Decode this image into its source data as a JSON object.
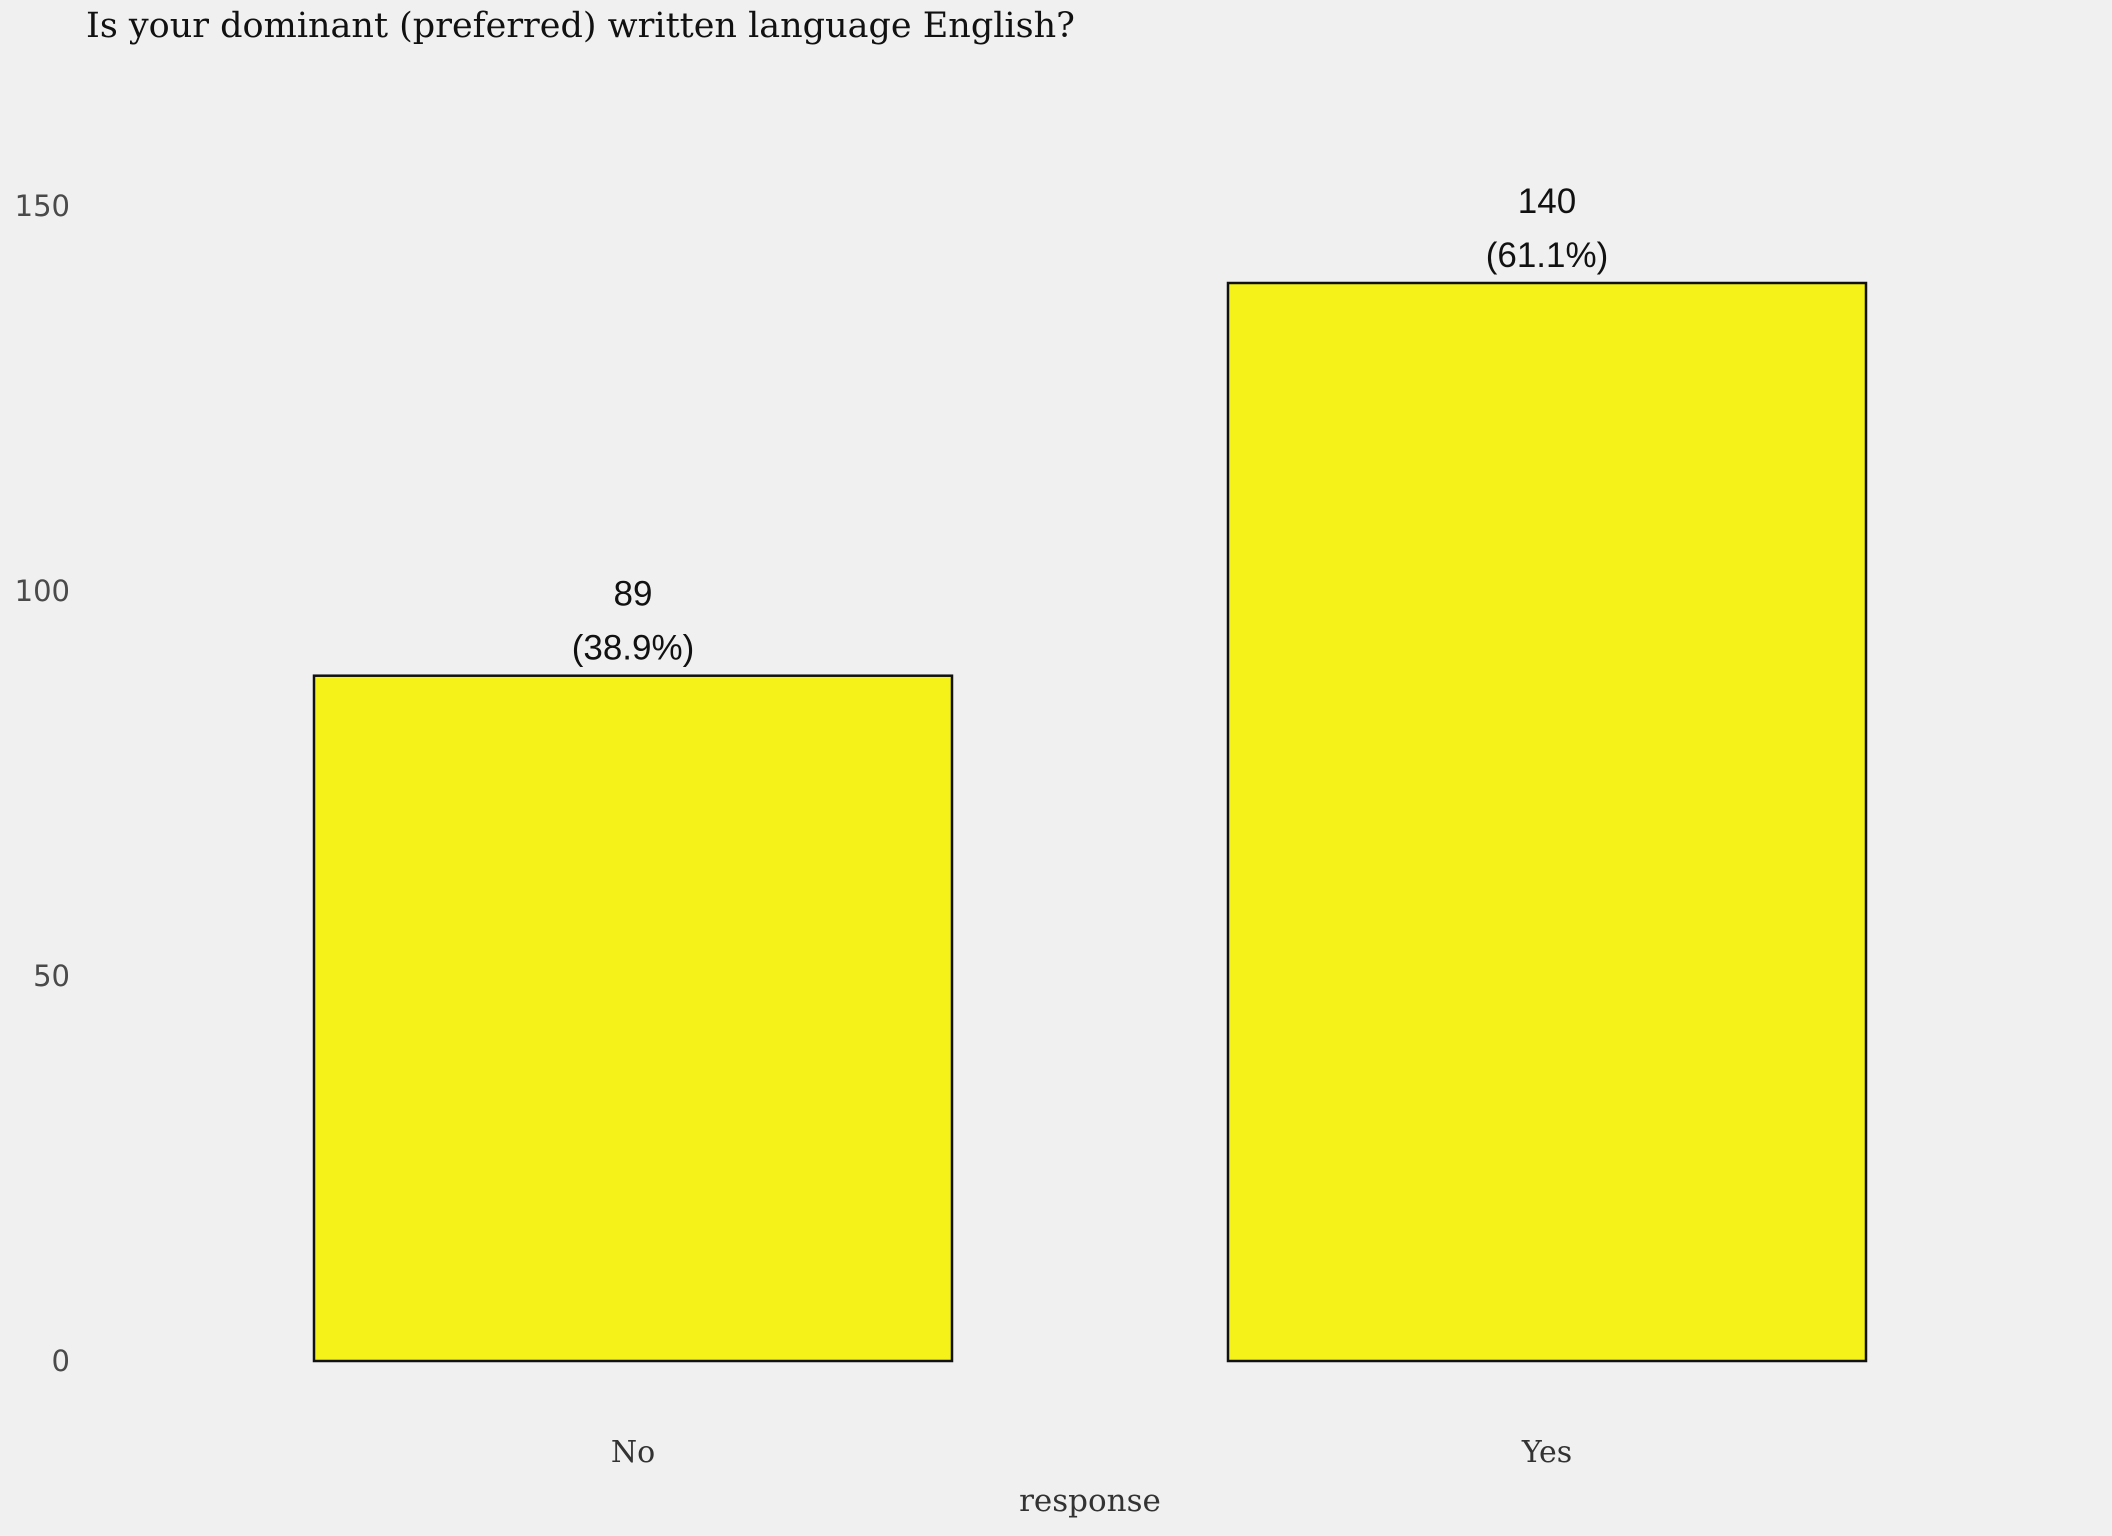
{
  "chart_data": {
    "type": "bar",
    "title": "Is your dominant (preferred) written language English?",
    "xlabel": "response",
    "ylabel": "",
    "categories": [
      "No",
      "Yes"
    ],
    "values": [
      89,
      140
    ],
    "value_labels": [
      "89",
      "140"
    ],
    "percent_labels": [
      "(38.9%)",
      "(61.1%)"
    ],
    "yticks": [
      0,
      50,
      100,
      150
    ],
    "ylim": [
      0,
      150
    ],
    "grid": false,
    "legend": "none",
    "bar_color": "#f5f21a",
    "bar_edge_color": "#111111",
    "background": "#f0f0f0"
  }
}
